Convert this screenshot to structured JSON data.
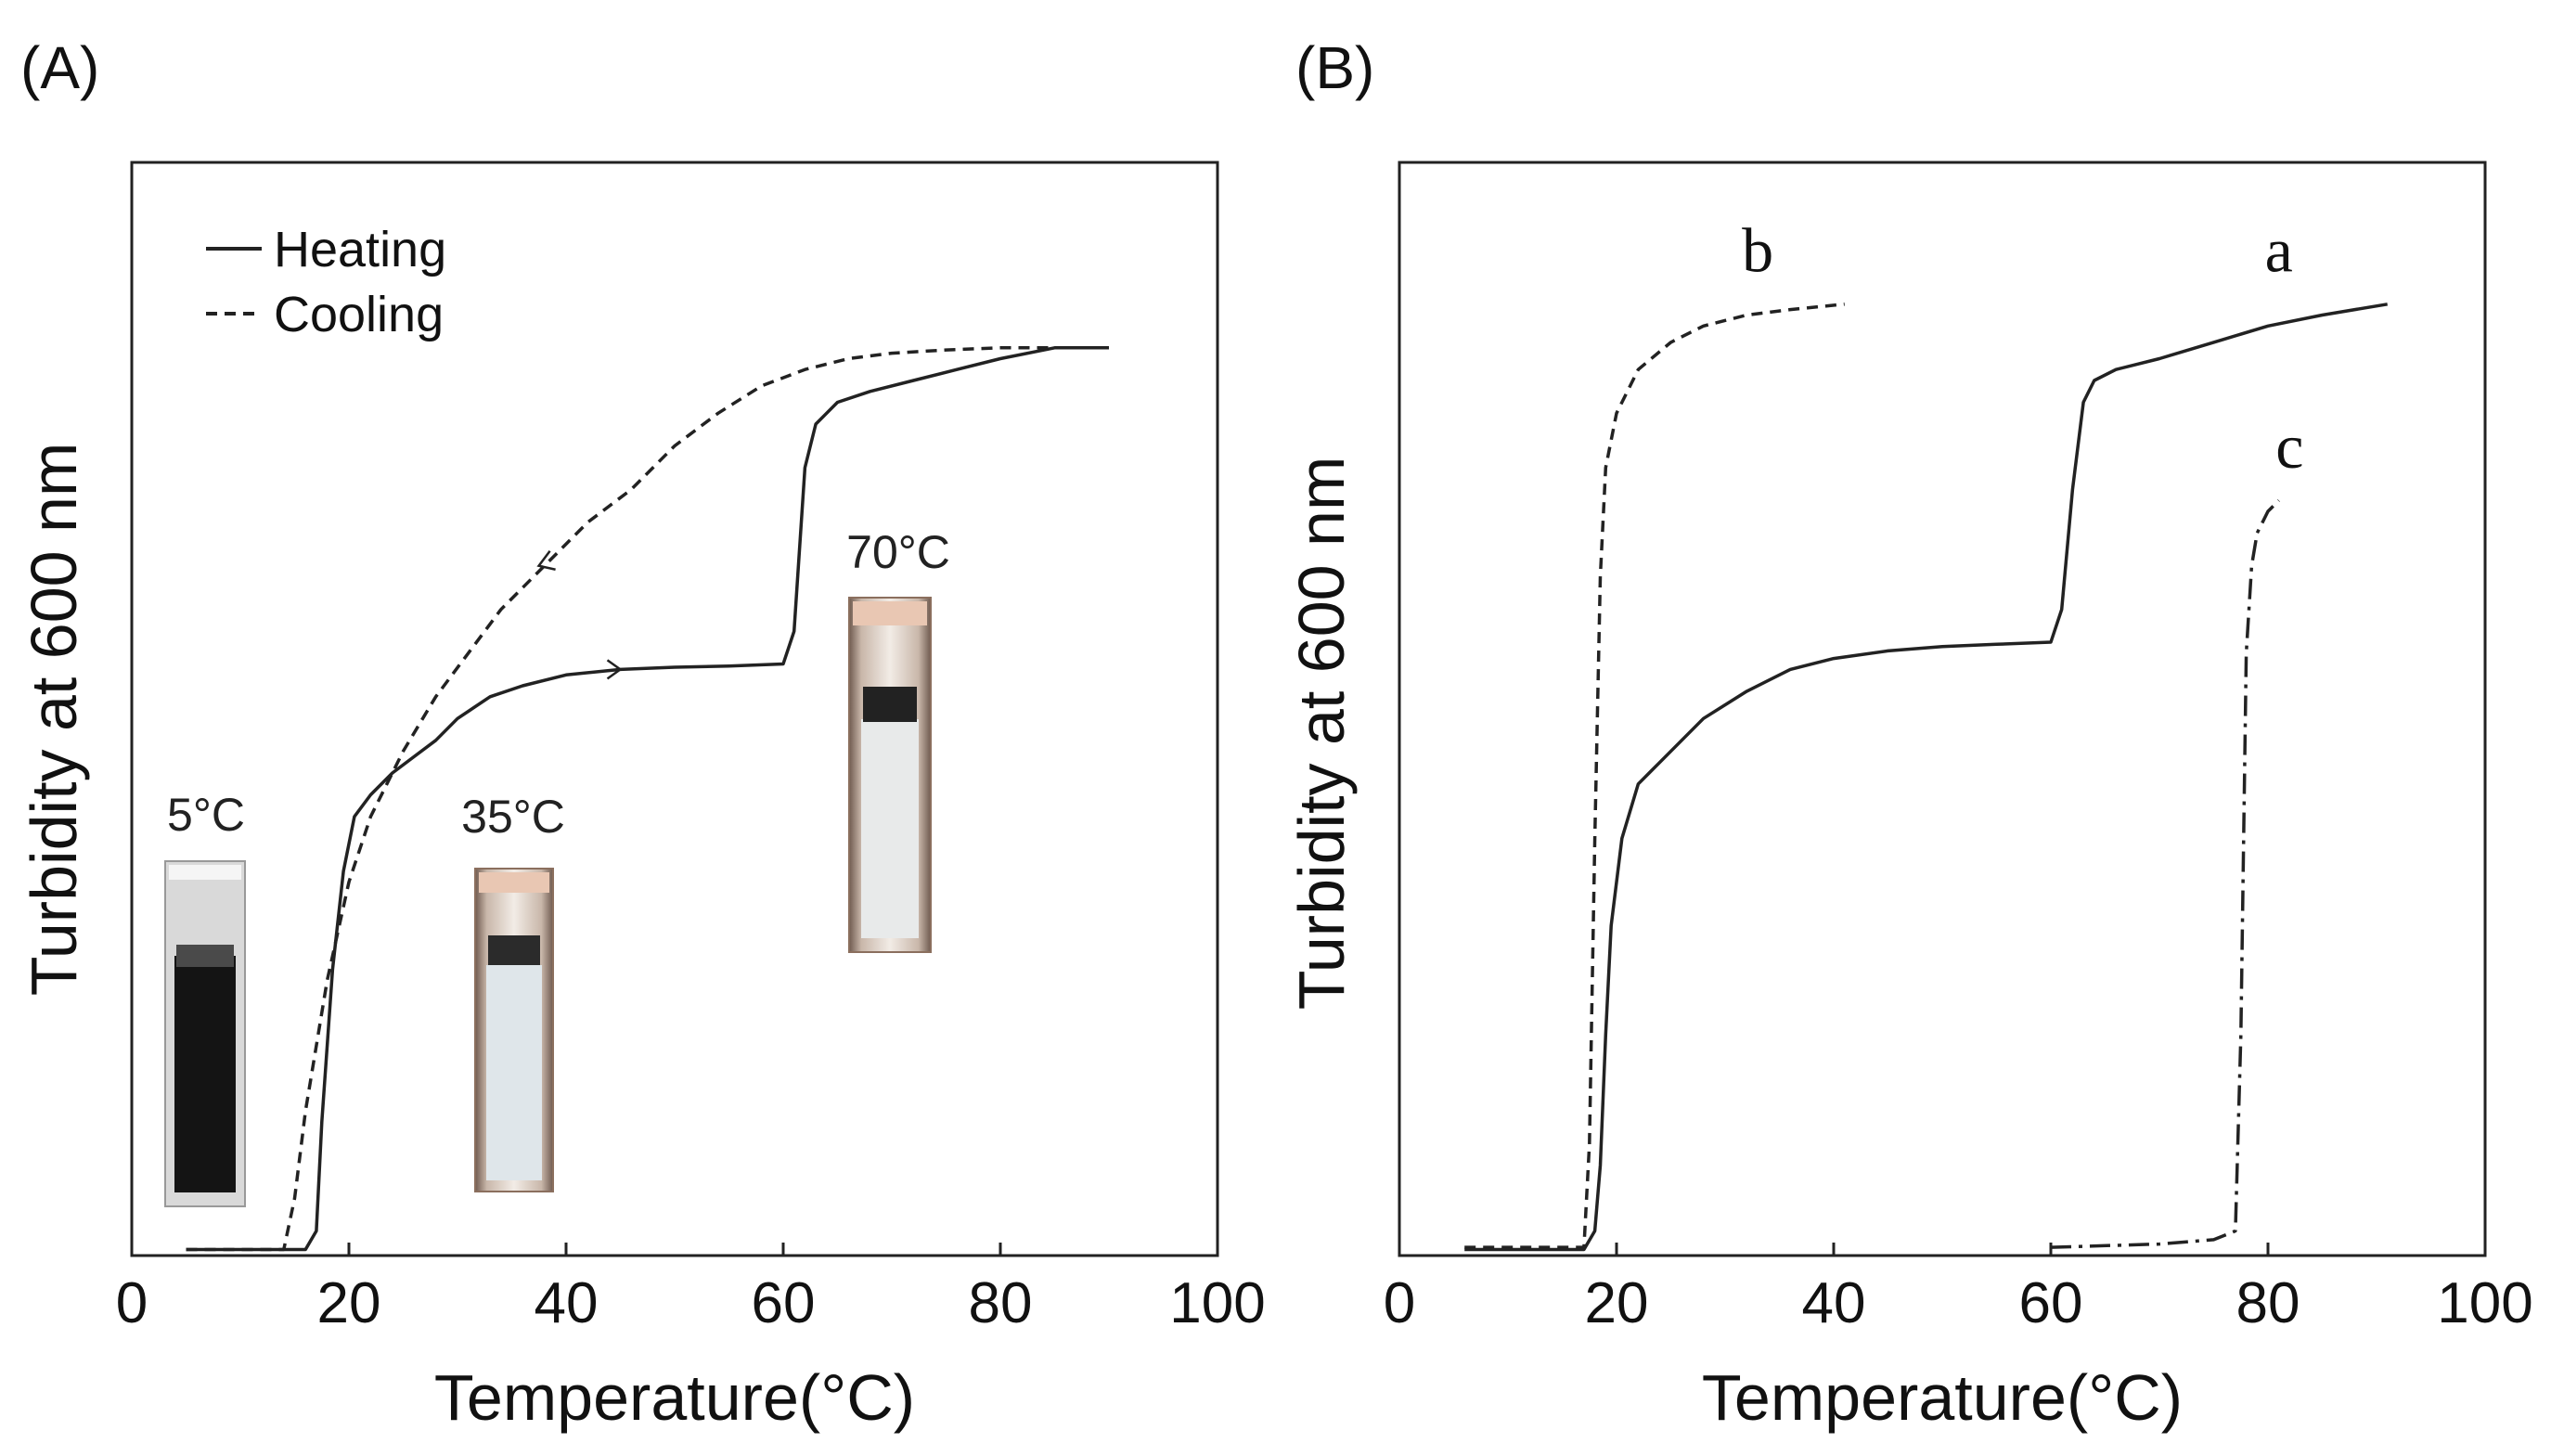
{
  "chart_data": [
    {
      "type": "line",
      "panel_label": "(A)",
      "xlabel": "Temperature(°C)",
      "ylabel": "Turbidity at 600 nm",
      "xlim": [
        0,
        100
      ],
      "ylim": [
        0,
        1.0
      ],
      "xticks": [
        0,
        20,
        40,
        60,
        80,
        100
      ],
      "yticks": [],
      "grid": false,
      "legend": {
        "placement": "top-left",
        "entries": [
          {
            "label": "Heating",
            "style": "solid"
          },
          {
            "label": "Cooling",
            "style": "dashed"
          }
        ]
      },
      "series": [
        {
          "name": "Heating",
          "style": "solid",
          "arrow": "right",
          "arrow_at": 45,
          "x": [
            5,
            16,
            17,
            17.5,
            18.5,
            19.5,
            20.5,
            22,
            24,
            26,
            28,
            30,
            33,
            36,
            40,
            45,
            50,
            55,
            60,
            61,
            62,
            63,
            65,
            68,
            72,
            76,
            80,
            85,
            90
          ],
          "y": [
            0.003,
            0.003,
            0.02,
            0.12,
            0.26,
            0.35,
            0.4,
            0.42,
            0.44,
            0.455,
            0.47,
            0.49,
            0.51,
            0.52,
            0.53,
            0.535,
            0.537,
            0.538,
            0.54,
            0.57,
            0.72,
            0.76,
            0.78,
            0.79,
            0.8,
            0.81,
            0.82,
            0.83,
            0.83
          ]
        },
        {
          "name": "Cooling",
          "style": "dashed",
          "arrow": "left",
          "arrow_at": 38,
          "x": [
            5,
            14,
            15,
            16,
            18,
            20,
            22,
            25,
            28,
            31,
            34,
            38,
            42,
            46,
            50,
            54,
            58,
            62,
            66,
            70,
            75,
            80,
            85,
            90
          ],
          "y": [
            0.003,
            0.003,
            0.05,
            0.13,
            0.25,
            0.34,
            0.4,
            0.46,
            0.51,
            0.55,
            0.59,
            0.63,
            0.67,
            0.7,
            0.74,
            0.77,
            0.795,
            0.81,
            0.82,
            0.825,
            0.828,
            0.83,
            0.83,
            0.83
          ]
        }
      ],
      "annotations": [
        {
          "text": "5°C",
          "x": 7
        },
        {
          "text": "35°C",
          "x": 35
        },
        {
          "text": "70°C",
          "x": 70
        }
      ]
    },
    {
      "type": "line",
      "panel_label": "(B)",
      "xlabel": "Temperature(°C)",
      "ylabel": "Turbidity at 600 nm",
      "xlim": [
        0,
        100
      ],
      "ylim": [
        0,
        1.0
      ],
      "xticks": [
        0,
        20,
        40,
        60,
        80,
        100
      ],
      "yticks": [],
      "grid": false,
      "series": [
        {
          "name": "a",
          "style": "solid",
          "label_at": [
            81,
            0.9
          ],
          "x": [
            6,
            17,
            18,
            18.5,
            19,
            19.5,
            20.5,
            22,
            24,
            26,
            28,
            32,
            36,
            40,
            45,
            50,
            55,
            60,
            61,
            62,
            63,
            64,
            66,
            70,
            75,
            80,
            85,
            91
          ],
          "y": [
            0.003,
            0.003,
            0.02,
            0.08,
            0.2,
            0.3,
            0.38,
            0.43,
            0.45,
            0.47,
            0.49,
            0.515,
            0.535,
            0.545,
            0.552,
            0.556,
            0.558,
            0.56,
            0.59,
            0.7,
            0.78,
            0.8,
            0.81,
            0.82,
            0.835,
            0.85,
            0.86,
            0.87
          ]
        },
        {
          "name": "b",
          "style": "dashed",
          "label_at": [
            33,
            0.9
          ],
          "x": [
            6,
            17,
            17.5,
            18,
            18.5,
            19,
            20,
            22,
            25,
            28,
            32,
            36,
            41
          ],
          "y": [
            0.005,
            0.005,
            0.1,
            0.38,
            0.62,
            0.72,
            0.77,
            0.81,
            0.835,
            0.85,
            0.86,
            0.865,
            0.87
          ]
        },
        {
          "name": "c",
          "style": "dashdot",
          "label_at": [
            82,
            0.72
          ],
          "x": [
            60,
            70,
            75,
            77,
            77.5,
            78,
            78.5,
            79,
            80,
            81
          ],
          "y": [
            0.005,
            0.008,
            0.012,
            0.02,
            0.2,
            0.55,
            0.63,
            0.66,
            0.68,
            0.69
          ]
        }
      ]
    }
  ]
}
